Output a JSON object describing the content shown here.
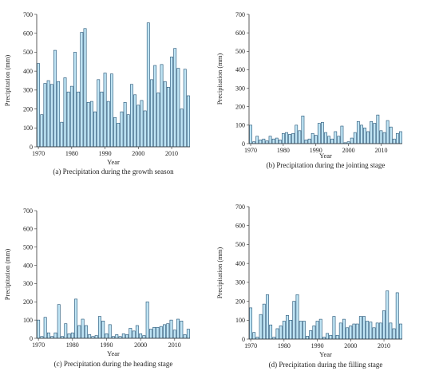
{
  "figure": {
    "bar_fill": "#bfe4f4",
    "bar_stroke": "#1f4f72",
    "axis_color": "#333333"
  },
  "chart_data": [
    {
      "id": "a",
      "type": "bar",
      "caption": "(a) Precipitation during the growth season",
      "xlabel": "Year",
      "ylabel": "Precipitation (mm)",
      "ylim": [
        0,
        700
      ],
      "yticks": [
        0,
        100,
        200,
        300,
        400,
        500,
        600,
        700
      ],
      "xticks": [
        1970,
        1980,
        1990,
        2000,
        2010
      ],
      "x_start": 1970,
      "values": [
        440,
        170,
        335,
        350,
        330,
        510,
        345,
        130,
        365,
        290,
        320,
        500,
        290,
        605,
        625,
        235,
        240,
        185,
        355,
        290,
        390,
        240,
        385,
        155,
        125,
        185,
        235,
        170,
        330,
        275,
        220,
        245,
        190,
        655,
        355,
        430,
        285,
        435,
        345,
        315,
        475,
        520,
        415,
        200,
        410,
        270
      ]
    },
    {
      "id": "b",
      "type": "bar",
      "caption": "(b) Precipitation during the jointing stage",
      "xlabel": "Year",
      "ylabel": "Precipitation (mm)",
      "ylim": [
        0,
        700
      ],
      "yticks": [
        0,
        100,
        200,
        300,
        400,
        500,
        600,
        700
      ],
      "xticks": [
        1970,
        1980,
        1990,
        2000,
        2010
      ],
      "x_start": 1970,
      "values": [
        100,
        10,
        40,
        20,
        25,
        15,
        40,
        25,
        30,
        20,
        55,
        60,
        50,
        55,
        100,
        70,
        150,
        20,
        25,
        55,
        45,
        110,
        115,
        60,
        40,
        25,
        65,
        40,
        95,
        5,
        10,
        30,
        60,
        120,
        100,
        85,
        65,
        120,
        110,
        155,
        70,
        60,
        125,
        90,
        25,
        55,
        65
      ]
    },
    {
      "id": "c",
      "type": "bar",
      "caption": "(c) Precipitation during the heading stage",
      "xlabel": "Year",
      "ylabel": "Precipitation (mm)",
      "ylim": [
        0,
        700
      ],
      "yticks": [
        0,
        100,
        200,
        300,
        400,
        500,
        600,
        700
      ],
      "xticks": [
        1970,
        1980,
        1990,
        2000,
        2010
      ],
      "x_start": 1970,
      "values": [
        100,
        10,
        115,
        30,
        10,
        30,
        185,
        10,
        80,
        25,
        30,
        215,
        70,
        105,
        70,
        20,
        10,
        15,
        120,
        95,
        25,
        75,
        10,
        20,
        10,
        25,
        20,
        55,
        40,
        70,
        25,
        15,
        200,
        50,
        60,
        60,
        65,
        75,
        80,
        100,
        45,
        105,
        95,
        20,
        50
      ]
    },
    {
      "id": "d",
      "type": "bar",
      "caption": "(d) Precipitation during the filling stage",
      "xlabel": "Year",
      "ylabel": "Precipitation (mm)",
      "ylim": [
        0,
        700
      ],
      "yticks": [
        0,
        100,
        200,
        300,
        400,
        500,
        600,
        700
      ],
      "xticks": [
        1970,
        1980,
        1990,
        2000,
        2010
      ],
      "x_start": 1970,
      "values": [
        165,
        35,
        10,
        130,
        185,
        235,
        75,
        10,
        55,
        70,
        95,
        125,
        100,
        200,
        235,
        95,
        95,
        15,
        45,
        70,
        95,
        105,
        10,
        30,
        20,
        120,
        20,
        85,
        105,
        60,
        70,
        80,
        80,
        120,
        120,
        95,
        90,
        60,
        85,
        85,
        150,
        255,
        85,
        55,
        245,
        80
      ]
    }
  ]
}
